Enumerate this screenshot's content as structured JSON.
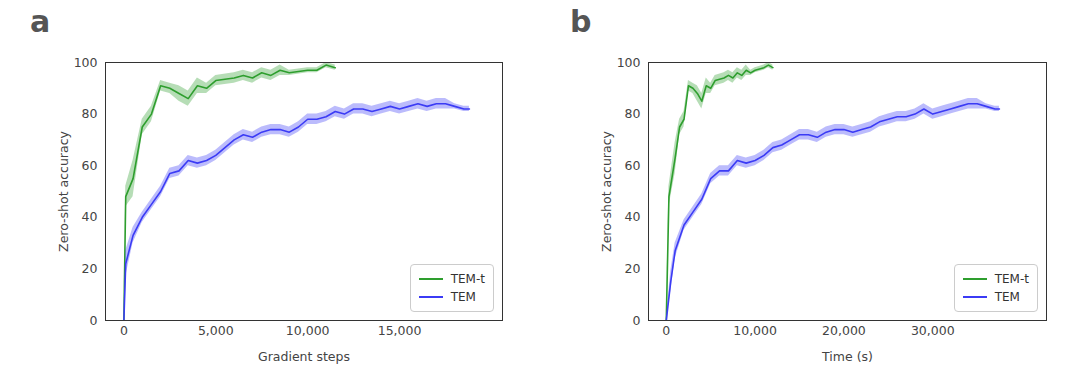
{
  "chart_data": [
    {
      "panel": "a",
      "type": "line",
      "x_label": "Gradient steps",
      "y_label": "Zero-shot accuracy",
      "xlim": [
        -1000,
        20600
      ],
      "ylim": [
        0,
        100
      ],
      "xticks": [
        0,
        5000,
        10000,
        15000
      ],
      "yticks": [
        0,
        20,
        40,
        60,
        80,
        100
      ],
      "legend": "lower right",
      "series": [
        {
          "name": "TEM-t",
          "color": "#2e9e2e",
          "x": [
            0,
            100,
            500,
            1000,
            1500,
            2000,
            2500,
            3000,
            3500,
            4000,
            4500,
            5000,
            6000,
            6500,
            7000,
            7500,
            8000,
            8500,
            9000,
            10000,
            10500,
            11000,
            11500
          ],
          "values": [
            0,
            48,
            55,
            75,
            80,
            91,
            90,
            88,
            86,
            91,
            90,
            93,
            94,
            95,
            94,
            96,
            95,
            97,
            96,
            97,
            97,
            99,
            98
          ],
          "error": [
            0,
            4,
            7,
            3,
            3,
            2,
            2,
            3,
            3,
            3,
            2,
            2,
            2,
            2,
            2,
            2,
            2,
            2,
            1,
            1,
            1,
            1,
            1
          ]
        },
        {
          "name": "TEM",
          "color": "#3b3bf5",
          "x": [
            0,
            100,
            500,
            1000,
            1500,
            2000,
            2500,
            3000,
            3500,
            4000,
            4500,
            5000,
            5500,
            6000,
            6500,
            7000,
            7500,
            8000,
            8500,
            9000,
            9500,
            10000,
            10500,
            11000,
            11500,
            12000,
            12500,
            13000,
            13500,
            14000,
            14500,
            15000,
            15500,
            16000,
            16500,
            17000,
            17500,
            18000,
            18500,
            18800
          ],
          "values": [
            0,
            22,
            33,
            40,
            45,
            50,
            57,
            58,
            62,
            61,
            62,
            64,
            67,
            70,
            72,
            71,
            73,
            74,
            74,
            73,
            75,
            78,
            78,
            79,
            81,
            80,
            82,
            82,
            81,
            82,
            83,
            82,
            83,
            84,
            83,
            84,
            84,
            83,
            82,
            82
          ],
          "error": [
            0,
            5,
            3,
            2,
            2,
            2,
            2,
            2,
            2,
            2,
            2,
            2,
            2,
            2,
            2,
            2,
            2,
            2,
            2,
            2,
            2,
            2,
            2,
            2,
            2,
            2,
            2,
            2,
            2,
            2,
            2,
            2,
            2,
            2,
            2,
            2,
            2,
            1,
            1,
            1
          ]
        }
      ]
    },
    {
      "panel": "b",
      "type": "line",
      "x_label": "Time (s)",
      "y_label": "Zero-shot accuracy",
      "xlim": [
        -2000,
        42800
      ],
      "ylim": [
        0,
        100
      ],
      "xticks": [
        0,
        10000,
        20000,
        30000
      ],
      "yticks": [
        0,
        20,
        40,
        60,
        80,
        100
      ],
      "legend": "lower right",
      "series": [
        {
          "name": "TEM-t",
          "color": "#2e9e2e",
          "x": [
            0,
            300,
            1000,
            1500,
            2000,
            2500,
            3000,
            3500,
            4000,
            4500,
            5000,
            5500,
            6500,
            7000,
            7500,
            8000,
            8500,
            9000,
            9500,
            10000,
            11000,
            11500,
            12000
          ],
          "values": [
            0,
            48,
            63,
            75,
            78,
            91,
            90,
            88,
            85,
            91,
            90,
            93,
            94,
            95,
            94,
            96,
            95,
            97,
            96,
            97,
            98,
            99,
            98
          ],
          "error": [
            0,
            4,
            6,
            3,
            3,
            2,
            2,
            3,
            3,
            3,
            2,
            2,
            2,
            2,
            2,
            2,
            2,
            2,
            1,
            1,
            1,
            1,
            1
          ]
        },
        {
          "name": "TEM",
          "color": "#3b3bf5",
          "x": [
            0,
            500,
            1000,
            2000,
            3000,
            4000,
            5000,
            6000,
            7000,
            8000,
            9000,
            10000,
            11000,
            12000,
            13000,
            14000,
            15000,
            16000,
            17000,
            18000,
            19000,
            20000,
            21000,
            22000,
            23000,
            24000,
            25000,
            26000,
            27000,
            28000,
            29000,
            30000,
            31000,
            32000,
            33000,
            34000,
            35000,
            36000,
            37000,
            37500
          ],
          "values": [
            0,
            15,
            27,
            37,
            42,
            47,
            55,
            58,
            58,
            62,
            61,
            62,
            64,
            67,
            68,
            70,
            72,
            72,
            71,
            73,
            74,
            74,
            73,
            74,
            75,
            77,
            78,
            79,
            79,
            80,
            82,
            80,
            81,
            82,
            83,
            84,
            84,
            83,
            82,
            82
          ],
          "error": [
            0,
            4,
            3,
            2,
            2,
            2,
            2,
            2,
            2,
            2,
            2,
            2,
            2,
            2,
            2,
            2,
            2,
            2,
            2,
            2,
            2,
            2,
            2,
            2,
            2,
            2,
            2,
            2,
            2,
            2,
            2,
            2,
            2,
            2,
            2,
            2,
            2,
            1,
            1,
            1
          ]
        }
      ]
    }
  ]
}
